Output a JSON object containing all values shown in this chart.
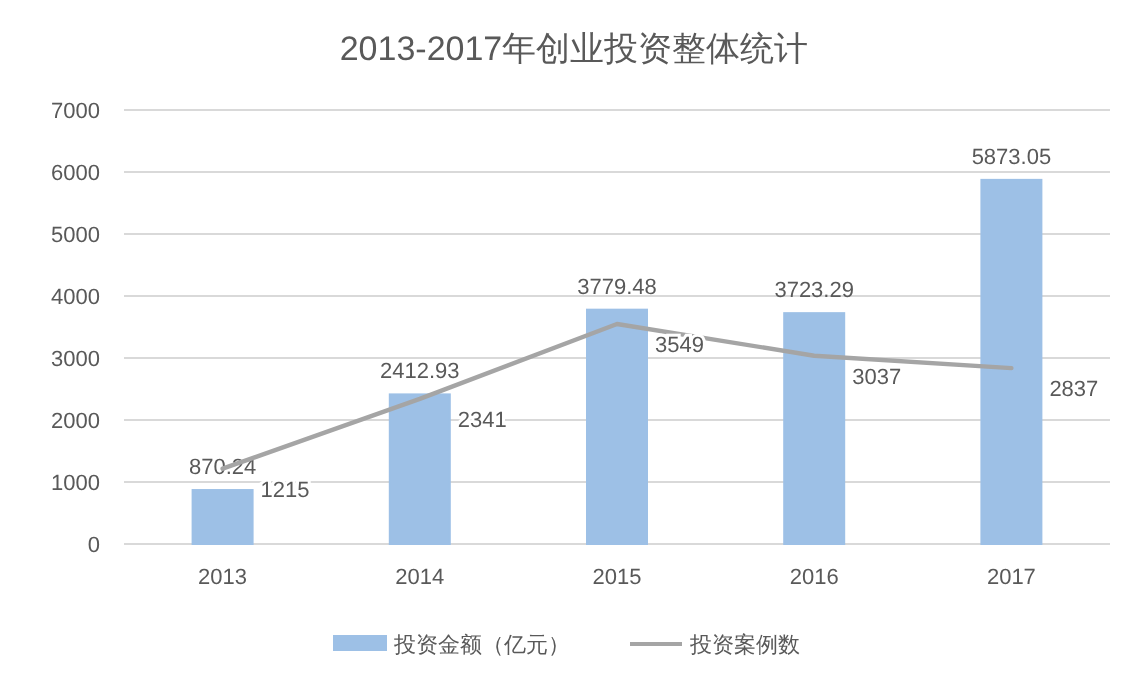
{
  "chart_data": {
    "type": "bar",
    "title": "2013-2017年创业投资整体统计",
    "categories": [
      "2013",
      "2014",
      "2015",
      "2016",
      "2017"
    ],
    "series": [
      {
        "name": "投资金额（亿元）",
        "color": "#9dc0e6",
        "values": [
          870.24,
          2412.93,
          3779.48,
          3723.29,
          5873.05
        ]
      },
      {
        "name": "投资案例数",
        "type": "line",
        "color": "#a5a5a5",
        "values": [
          1215,
          2341,
          3549,
          3037,
          2837
        ]
      }
    ],
    "ylim": [
      0,
      7000
    ],
    "yticks": [
      0,
      1000,
      2000,
      3000,
      4000,
      5000,
      6000,
      7000
    ],
    "grid": "y",
    "legend": "bottom",
    "data_labels": true
  }
}
